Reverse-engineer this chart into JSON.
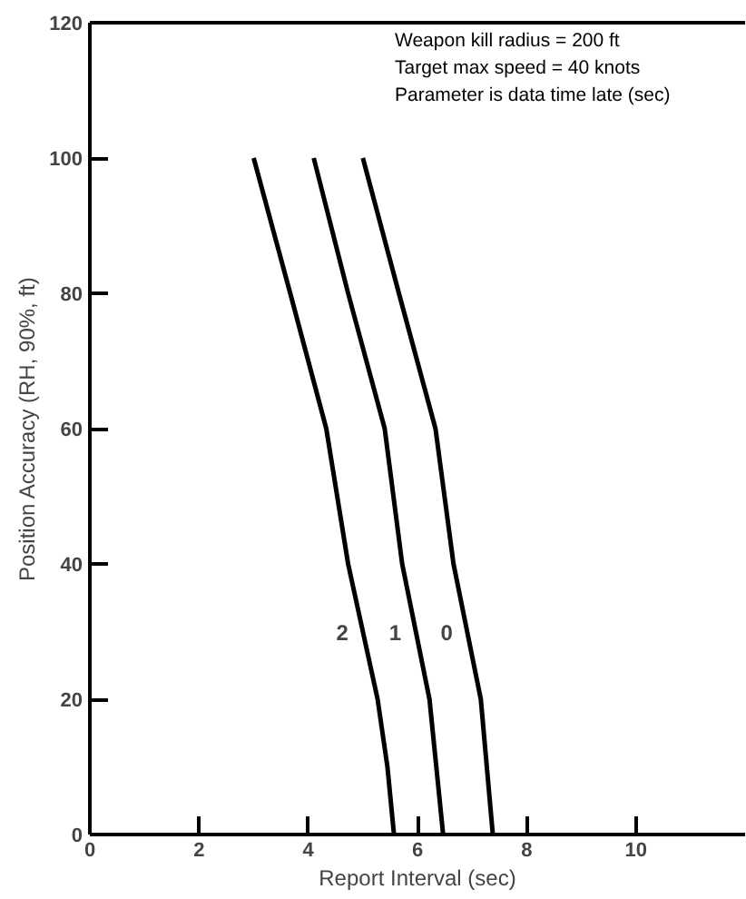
{
  "chart_data": {
    "type": "line",
    "xlabel": "Report Interval (sec)",
    "ylabel": "Position Accuracy (RH, 90%, ft)",
    "xlim": [
      0,
      12
    ],
    "ylim": [
      0,
      120
    ],
    "xticks": [
      0,
      2,
      4,
      6,
      8,
      10
    ],
    "yticks": [
      0,
      20,
      40,
      60,
      80,
      100,
      120
    ],
    "grid": false,
    "legend": false,
    "marker": "none",
    "line_style": "solid",
    "series": [
      {
        "name": "2",
        "color": "#000000",
        "x": [
          3.0,
          3.67,
          4.33,
          4.73,
          5.27,
          5.45,
          5.57
        ],
        "values": [
          100,
          80,
          60,
          40,
          20,
          10,
          0
        ]
      },
      {
        "name": "1",
        "color": "#000000",
        "x": [
          4.1,
          4.73,
          5.4,
          5.72,
          6.22,
          6.47
        ],
        "values": [
          100,
          80,
          60,
          40,
          20,
          0
        ]
      },
      {
        "name": "0",
        "color": "#000000",
        "x": [
          5.0,
          5.66,
          6.33,
          6.66,
          7.16,
          7.38
        ],
        "values": [
          100,
          80,
          60,
          40,
          20,
          0
        ]
      }
    ],
    "annotations": [
      "Weapon kill radius = 200 ft",
      "Target max speed = 40 knots",
      "Parameter is data time late (sec)"
    ]
  }
}
